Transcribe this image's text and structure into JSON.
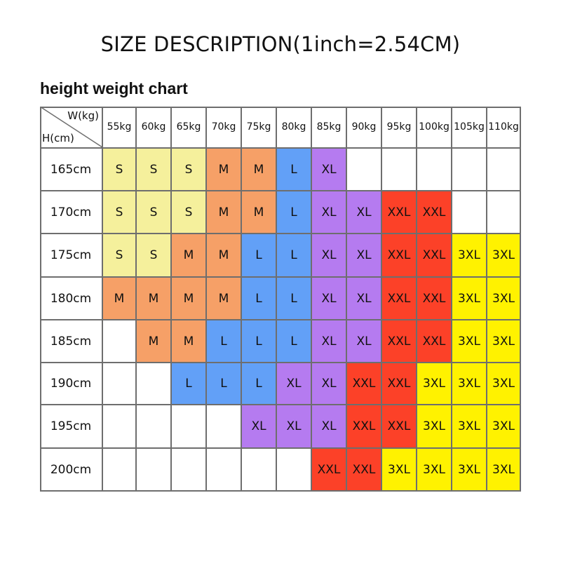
{
  "title": "SIZE  DESCRIPTION(1inch=2.54CM)",
  "subtitle": "height weight chart",
  "chart_data": {
    "type": "table",
    "title": "SIZE  DESCRIPTION(1inch=2.54CM)",
    "subtitle": "height weight chart",
    "corner_col_label": "W(kg)",
    "corner_row_label": "H(cm)",
    "columns": [
      "55kg",
      "60kg",
      "65kg",
      "70kg",
      "75kg",
      "80kg",
      "85kg",
      "90kg",
      "95kg",
      "100kg",
      "105kg",
      "110kg"
    ],
    "rows": [
      {
        "label": "165cm",
        "sizes": [
          "S",
          "S",
          "S",
          "M",
          "M",
          "L",
          "XL",
          "",
          "",
          "",
          "",
          ""
        ]
      },
      {
        "label": "170cm",
        "sizes": [
          "S",
          "S",
          "S",
          "M",
          "M",
          "L",
          "XL",
          "XL",
          "XXL",
          "XXL",
          "",
          ""
        ]
      },
      {
        "label": "175cm",
        "sizes": [
          "S",
          "S",
          "M",
          "M",
          "L",
          "L",
          "XL",
          "XL",
          "XXL",
          "XXL",
          "3XL",
          "3XL"
        ]
      },
      {
        "label": "180cm",
        "sizes": [
          "M",
          "M",
          "M",
          "M",
          "L",
          "L",
          "XL",
          "XL",
          "XXL",
          "XXL",
          "3XL",
          "3XL"
        ]
      },
      {
        "label": "185cm",
        "sizes": [
          "",
          "M",
          "M",
          "L",
          "L",
          "L",
          "XL",
          "XL",
          "XXL",
          "XXL",
          "3XL",
          "3XL"
        ]
      },
      {
        "label": "190cm",
        "sizes": [
          "",
          "",
          "L",
          "L",
          "L",
          "XL",
          "XL",
          "XXL",
          "XXL",
          "3XL",
          "3XL",
          "3XL"
        ]
      },
      {
        "label": "195cm",
        "sizes": [
          "",
          "",
          "",
          "",
          "XL",
          "XL",
          "XL",
          "XXL",
          "XXL",
          "3XL",
          "3XL",
          "3XL"
        ]
      },
      {
        "label": "200cm",
        "sizes": [
          "",
          "",
          "",
          "",
          "",
          "",
          "XXL",
          "XXL",
          "3XL",
          "3XL",
          "3XL",
          "3XL"
        ]
      }
    ],
    "size_colors": {
      "S": "#f5f09c",
      "M": "#f6a067",
      "L": "#62a0f7",
      "XL": "#b57bf0",
      "XXL": "#fc4128",
      "3XL": "#fff200"
    }
  }
}
